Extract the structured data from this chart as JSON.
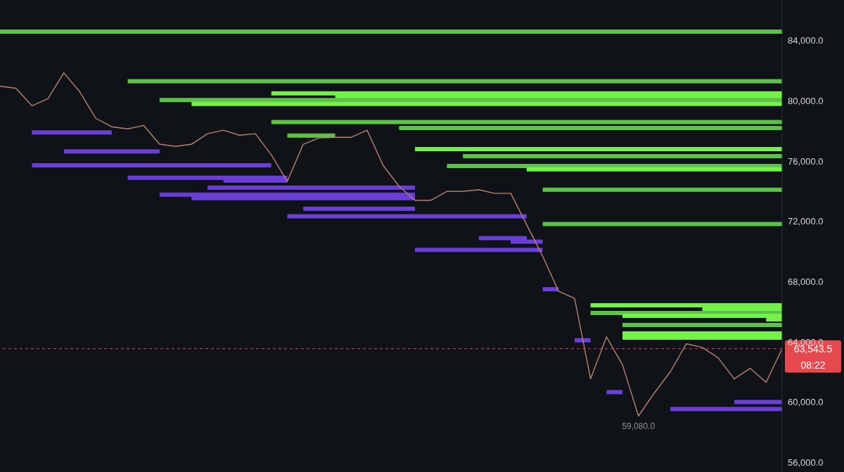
{
  "chart_data": {
    "type": "line",
    "ylim": [
      55400,
      86700
    ],
    "tick_labels": "y",
    "categories": [
      null,
      null,
      null,
      null,
      null,
      null,
      null,
      null,
      null,
      null,
      null,
      null,
      null,
      null,
      null,
      null,
      null,
      null,
      null,
      null,
      null,
      null,
      null,
      null,
      null,
      null,
      null,
      null,
      null,
      null,
      null,
      null,
      null,
      null,
      null,
      null,
      null,
      null,
      null,
      null,
      null,
      null,
      null,
      null,
      null,
      null,
      null,
      null,
      null,
      null
    ],
    "yticks": [
      {
        "value": 56000,
        "label": "56,000.0"
      },
      {
        "value": 60000,
        "label": "60,000.0"
      },
      {
        "value": 64000,
        "label": "64,000.0"
      },
      {
        "value": 68000,
        "label": "68,000.0"
      },
      {
        "value": 72000,
        "label": "72,000.0"
      },
      {
        "value": 76000,
        "label": "76,000.0"
      },
      {
        "value": 80000,
        "label": "80,000.0"
      },
      {
        "value": 84000,
        "label": "84,000.0"
      }
    ],
    "ref_lines": [
      {
        "axis": "y",
        "value": 63543.5,
        "label": "63,543.5",
        "color": "#e5484d",
        "line_style": "dashed"
      }
    ],
    "annotations": [
      "08:22",
      {
        "text": "59,080.0",
        "y": 59080
      }
    ],
    "series": [
      {
        "color": "#5cc24a",
        "values": [
          84600,
          84600,
          84600,
          84600,
          84600,
          84600,
          84600,
          84600,
          84600,
          84600,
          84600,
          84600,
          84600,
          84600,
          84600,
          84600,
          84600,
          84600,
          84600,
          84600,
          84600,
          84600,
          84600,
          84600,
          84600,
          84600,
          84600,
          84600,
          84600,
          84600,
          84600,
          84600,
          84600,
          84600,
          84600,
          84600,
          84600,
          84600,
          84600,
          84600,
          84600,
          84600,
          84600,
          84600,
          84600,
          84600,
          84600,
          84600,
          84600,
          84600
        ]
      },
      {
        "color": "#5cc24a",
        "values": [
          null,
          null,
          null,
          null,
          null,
          null,
          null,
          null,
          81300,
          81300,
          81300,
          81300,
          81300,
          81300,
          81300,
          81300,
          81300,
          81300,
          81300,
          81300,
          81300,
          81300,
          81300,
          81300,
          81300,
          81300,
          81300,
          81300,
          81300,
          81300,
          81300,
          81300,
          81300,
          81300,
          81300,
          81300,
          81300,
          81300,
          81300,
          81300,
          81300,
          81300,
          81300,
          81300,
          81300,
          81300,
          81300,
          81300,
          81300,
          81300
        ]
      },
      {
        "color": "#74f24a",
        "values": [
          null,
          null,
          null,
          null,
          null,
          null,
          null,
          null,
          null,
          null,
          null,
          null,
          null,
          null,
          null,
          null,
          null,
          80500,
          80500,
          80500,
          80500,
          80500,
          80500,
          80500,
          80500,
          80500,
          80500,
          80500,
          80500,
          80500,
          80500,
          80500,
          80500,
          80500,
          80500,
          80500,
          80500,
          80500,
          80500,
          80500,
          80500,
          80500,
          80500,
          80500,
          80500,
          80500,
          80500,
          80500,
          80500,
          80500
        ]
      },
      {
        "color": "#74f24a",
        "values": [
          null,
          null,
          null,
          null,
          null,
          null,
          null,
          null,
          null,
          null,
          null,
          null,
          null,
          null,
          null,
          null,
          null,
          null,
          null,
          null,
          null,
          80300,
          80300,
          80300,
          80300,
          80300,
          80300,
          80300,
          80300,
          80300,
          80300,
          80300,
          80300,
          80300,
          80300,
          80300,
          80300,
          80300,
          80300,
          80300,
          80300,
          80300,
          80300,
          80300,
          80300,
          80300,
          80300,
          80300,
          80300,
          80300
        ]
      },
      {
        "color": "#5cc24a",
        "values": [
          null,
          null,
          null,
          null,
          null,
          null,
          null,
          null,
          null,
          null,
          80050,
          80050,
          80050,
          80050,
          80050,
          80050,
          80050,
          80050,
          80050,
          80050,
          80050,
          80050,
          80050,
          80050,
          80050,
          80050,
          80050,
          80050,
          80050,
          80050,
          80050,
          80050,
          80050,
          80050,
          80050,
          80050,
          80050,
          80050,
          80050,
          80050,
          80050,
          80050,
          80050,
          80050,
          80050,
          80050,
          80050,
          80050,
          80050,
          80050
        ]
      },
      {
        "color": "#74f24a",
        "values": [
          null,
          null,
          null,
          null,
          null,
          null,
          null,
          null,
          null,
          null,
          null,
          null,
          79800,
          79800,
          79800,
          79800,
          79800,
          79800,
          79800,
          79800,
          79800,
          79800,
          79800,
          79800,
          79800,
          79800,
          79800,
          79800,
          79800,
          79800,
          79800,
          79800,
          79800,
          79800,
          79800,
          79800,
          79800,
          79800,
          79800,
          79800,
          79800,
          79800,
          79800,
          79800,
          79800,
          79800,
          79800,
          79800,
          79800,
          79800
        ]
      },
      {
        "color": "#5cc24a",
        "values": [
          null,
          null,
          null,
          null,
          null,
          null,
          null,
          null,
          null,
          null,
          null,
          null,
          null,
          null,
          null,
          null,
          null,
          78600,
          78600,
          78600,
          78600,
          78600,
          78600,
          78600,
          78600,
          78600,
          78600,
          78600,
          78600,
          78600,
          78600,
          78600,
          78600,
          78600,
          78600,
          78600,
          78600,
          78600,
          78600,
          78600,
          78600,
          78600,
          78600,
          78600,
          78600,
          78600,
          78600,
          78600,
          78600,
          78600
        ]
      },
      {
        "color": "#5cc24a",
        "values": [
          null,
          null,
          null,
          null,
          null,
          null,
          null,
          null,
          null,
          null,
          null,
          null,
          null,
          null,
          null,
          null,
          null,
          null,
          null,
          null,
          null,
          null,
          null,
          null,
          null,
          78200,
          78200,
          78200,
          78200,
          78200,
          78200,
          78200,
          78200,
          78200,
          78200,
          78200,
          78200,
          78200,
          78200,
          78200,
          78200,
          78200,
          78200,
          78200,
          78200,
          78200,
          78200,
          78200,
          78200,
          78200
        ]
      },
      {
        "color": "#5cc24a",
        "values": [
          null,
          null,
          null,
          null,
          null,
          null,
          null,
          null,
          null,
          null,
          null,
          null,
          null,
          null,
          null,
          null,
          null,
          null,
          77700,
          77700,
          77700,
          77700,
          null,
          null,
          null,
          null,
          null,
          null,
          null,
          null,
          null,
          null,
          null,
          null,
          null,
          null,
          null,
          null,
          null,
          null,
          null,
          null,
          null,
          null,
          null,
          null,
          null,
          null,
          null,
          null
        ]
      },
      {
        "color": "#74f24a",
        "values": [
          null,
          null,
          null,
          null,
          null,
          null,
          null,
          null,
          null,
          null,
          null,
          null,
          null,
          null,
          null,
          null,
          null,
          null,
          null,
          null,
          null,
          null,
          null,
          null,
          null,
          null,
          76800,
          76800,
          76800,
          76800,
          76800,
          76800,
          76800,
          76800,
          76800,
          76800,
          76800,
          76800,
          76800,
          76800,
          76800,
          76800,
          76800,
          76800,
          76800,
          76800,
          76800,
          76800,
          76800,
          76800
        ]
      },
      {
        "color": "#5cc24a",
        "values": [
          null,
          null,
          null,
          null,
          null,
          null,
          null,
          null,
          null,
          null,
          null,
          null,
          null,
          null,
          null,
          null,
          null,
          null,
          null,
          null,
          null,
          null,
          null,
          null,
          null,
          null,
          null,
          null,
          null,
          76330,
          76330,
          76330,
          76330,
          76330,
          76330,
          76330,
          76330,
          76330,
          76330,
          76330,
          76330,
          76330,
          76330,
          76330,
          76330,
          76330,
          76330,
          76330,
          76330,
          76330
        ]
      },
      {
        "color": "#5cc24a",
        "values": [
          null,
          null,
          null,
          null,
          null,
          null,
          null,
          null,
          null,
          null,
          null,
          null,
          null,
          null,
          null,
          null,
          null,
          null,
          null,
          null,
          null,
          null,
          null,
          null,
          null,
          null,
          null,
          null,
          75680,
          75680,
          75680,
          75680,
          75680,
          75680,
          75680,
          75680,
          75680,
          75680,
          75680,
          75680,
          75680,
          75680,
          75680,
          75680,
          75680,
          75680,
          75680,
          75680,
          75680,
          75680
        ]
      },
      {
        "color": "#74f24a",
        "values": [
          null,
          null,
          null,
          null,
          null,
          null,
          null,
          null,
          null,
          null,
          null,
          null,
          null,
          null,
          null,
          null,
          null,
          null,
          null,
          null,
          null,
          null,
          null,
          null,
          null,
          null,
          null,
          null,
          null,
          null,
          null,
          null,
          null,
          75450,
          75450,
          75450,
          75450,
          75450,
          75450,
          75450,
          75450,
          75450,
          75450,
          75450,
          75450,
          75450,
          75450,
          75450,
          75450,
          75450
        ]
      },
      {
        "color": "#5cc24a",
        "values": [
          null,
          null,
          null,
          null,
          null,
          null,
          null,
          null,
          null,
          null,
          null,
          null,
          null,
          null,
          null,
          null,
          null,
          null,
          null,
          null,
          null,
          null,
          null,
          null,
          null,
          null,
          null,
          null,
          null,
          null,
          null,
          null,
          null,
          null,
          74100,
          74100,
          74100,
          74100,
          74100,
          74100,
          74100,
          74100,
          74100,
          74100,
          74100,
          74100,
          74100,
          74100,
          74100,
          74100
        ]
      },
      {
        "color": "#5cc24a",
        "values": [
          null,
          null,
          null,
          null,
          null,
          null,
          null,
          null,
          null,
          null,
          null,
          null,
          null,
          null,
          null,
          null,
          null,
          null,
          null,
          null,
          null,
          null,
          null,
          null,
          null,
          null,
          null,
          null,
          null,
          null,
          null,
          null,
          null,
          null,
          71820,
          71820,
          71820,
          71820,
          71820,
          71820,
          71820,
          71820,
          71820,
          71820,
          71820,
          71820,
          71820,
          71820,
          71820,
          71820
        ]
      },
      {
        "color": "#74f24a",
        "values": [
          null,
          null,
          null,
          null,
          null,
          null,
          null,
          null,
          null,
          null,
          null,
          null,
          null,
          null,
          null,
          null,
          null,
          null,
          null,
          null,
          null,
          null,
          null,
          null,
          null,
          null,
          null,
          null,
          null,
          null,
          null,
          null,
          null,
          null,
          null,
          null,
          null,
          66420,
          66420,
          66420,
          66420,
          66420,
          66420,
          66420,
          66420,
          66420,
          66420,
          66420,
          66420,
          66420
        ]
      },
      {
        "color": "#74f24a",
        "values": [
          null,
          null,
          null,
          null,
          null,
          null,
          null,
          null,
          null,
          null,
          null,
          null,
          null,
          null,
          null,
          null,
          null,
          null,
          null,
          null,
          null,
          null,
          null,
          null,
          null,
          null,
          null,
          null,
          null,
          null,
          null,
          null,
          null,
          null,
          null,
          null,
          null,
          null,
          null,
          null,
          null,
          null,
          null,
          null,
          66140,
          66140,
          66140,
          66140,
          66140,
          66140
        ]
      },
      {
        "color": "#5cc24a",
        "values": [
          null,
          null,
          null,
          null,
          null,
          null,
          null,
          null,
          null,
          null,
          null,
          null,
          null,
          null,
          null,
          null,
          null,
          null,
          null,
          null,
          null,
          null,
          null,
          null,
          null,
          null,
          null,
          null,
          null,
          null,
          null,
          null,
          null,
          null,
          null,
          null,
          null,
          65910,
          65910,
          65910,
          65910,
          65910,
          65910,
          65910,
          65910,
          65910,
          65910,
          65910,
          65910,
          65910
        ]
      },
      {
        "color": "#74f24a",
        "values": [
          null,
          null,
          null,
          null,
          null,
          null,
          null,
          null,
          null,
          null,
          null,
          null,
          null,
          null,
          null,
          null,
          null,
          null,
          null,
          null,
          null,
          null,
          null,
          null,
          null,
          null,
          null,
          null,
          null,
          null,
          null,
          null,
          null,
          null,
          null,
          null,
          null,
          null,
          null,
          65730,
          65730,
          65730,
          65730,
          65730,
          65730,
          65730,
          65730,
          65730,
          65730,
          65730
        ]
      },
      {
        "color": "#74f24a",
        "values": [
          null,
          null,
          null,
          null,
          null,
          null,
          null,
          null,
          null,
          null,
          null,
          null,
          null,
          null,
          null,
          null,
          null,
          null,
          null,
          null,
          null,
          null,
          null,
          null,
          null,
          null,
          null,
          null,
          null,
          null,
          null,
          null,
          null,
          null,
          null,
          null,
          null,
          null,
          null,
          null,
          null,
          null,
          null,
          null,
          null,
          null,
          null,
          null,
          65490,
          65490
        ]
      },
      {
        "color": "#5cc24a",
        "values": [
          null,
          null,
          null,
          null,
          null,
          null,
          null,
          null,
          null,
          null,
          null,
          null,
          null,
          null,
          null,
          null,
          null,
          null,
          null,
          null,
          null,
          null,
          null,
          null,
          null,
          null,
          null,
          null,
          null,
          null,
          null,
          null,
          null,
          null,
          null,
          null,
          null,
          null,
          null,
          65120,
          65120,
          65120,
          65120,
          65120,
          65120,
          65120,
          65120,
          65120,
          65120,
          65120
        ]
      },
      {
        "color": "#74f24a",
        "values": [
          null,
          null,
          null,
          null,
          null,
          null,
          null,
          null,
          null,
          null,
          null,
          null,
          null,
          null,
          null,
          null,
          null,
          null,
          null,
          null,
          null,
          null,
          null,
          null,
          null,
          null,
          null,
          null,
          null,
          null,
          null,
          null,
          null,
          null,
          null,
          null,
          null,
          null,
          null,
          64560,
          64560,
          64560,
          64560,
          64560,
          64560,
          64560,
          64560,
          64560,
          64560,
          64560
        ]
      },
      {
        "color": "#74f24a",
        "values": [
          null,
          null,
          null,
          null,
          null,
          null,
          null,
          null,
          null,
          null,
          null,
          null,
          null,
          null,
          null,
          null,
          null,
          null,
          null,
          null,
          null,
          null,
          null,
          null,
          null,
          null,
          null,
          null,
          null,
          null,
          null,
          null,
          null,
          null,
          null,
          null,
          null,
          null,
          null,
          64280,
          64280,
          64280,
          64280,
          64280,
          64280,
          64280,
          64280,
          64280,
          64280,
          64280
        ]
      },
      {
        "color": "#6a3fd8",
        "values": [
          null,
          null,
          77900,
          77900,
          77900,
          77900,
          77900,
          77900,
          null,
          null,
          null,
          null,
          null,
          null,
          null,
          null,
          null,
          null,
          null,
          null,
          null,
          null,
          null,
          null,
          null,
          null,
          null,
          null,
          null,
          null,
          null,
          null,
          null,
          null,
          null,
          null,
          null,
          null,
          null,
          null,
          null,
          null,
          null,
          null,
          null,
          null,
          null,
          null,
          null,
          null
        ]
      },
      {
        "color": "#6a3fd8",
        "values": [
          null,
          null,
          null,
          null,
          76650,
          76650,
          76650,
          76650,
          76650,
          76650,
          76650,
          null,
          null,
          null,
          null,
          null,
          null,
          null,
          null,
          null,
          null,
          null,
          null,
          null,
          null,
          null,
          null,
          null,
          null,
          null,
          null,
          null,
          null,
          null,
          null,
          null,
          null,
          null,
          null,
          null,
          null,
          null,
          null,
          null,
          null,
          null,
          null,
          null,
          null,
          null
        ]
      },
      {
        "color": "#6a3fd8",
        "values": [
          null,
          null,
          75720,
          75720,
          75720,
          75720,
          75720,
          75720,
          75720,
          75720,
          75720,
          75720,
          75720,
          75720,
          75720,
          75720,
          75720,
          75720,
          null,
          null,
          null,
          null,
          null,
          null,
          null,
          null,
          null,
          null,
          null,
          null,
          null,
          null,
          null,
          null,
          null,
          null,
          null,
          null,
          null,
          null,
          null,
          null,
          null,
          null,
          null,
          null,
          null,
          null,
          null,
          null
        ]
      },
      {
        "color": "#6a3fd8",
        "values": [
          null,
          null,
          null,
          null,
          null,
          null,
          null,
          null,
          74890,
          74890,
          74890,
          74890,
          74890,
          74890,
          74890,
          74890,
          74890,
          74890,
          74890,
          null,
          null,
          null,
          null,
          null,
          null,
          null,
          null,
          null,
          null,
          null,
          null,
          null,
          null,
          null,
          null,
          null,
          null,
          null,
          null,
          null,
          null,
          null,
          null,
          null,
          null,
          null,
          null,
          null,
          null,
          null
        ]
      },
      {
        "color": "#6a3fd8",
        "values": [
          null,
          null,
          null,
          null,
          null,
          null,
          null,
          null,
          null,
          null,
          null,
          null,
          null,
          null,
          74700,
          74700,
          74700,
          74700,
          74700,
          null,
          null,
          null,
          null,
          null,
          null,
          null,
          null,
          null,
          null,
          null,
          null,
          null,
          null,
          null,
          null,
          null,
          null,
          null,
          null,
          null,
          null,
          null,
          null,
          null,
          null,
          null,
          null,
          null,
          null,
          null
        ]
      },
      {
        "color": "#6a3fd8",
        "values": [
          null,
          null,
          null,
          null,
          null,
          null,
          null,
          null,
          null,
          null,
          null,
          null,
          null,
          74240,
          74240,
          74240,
          74240,
          74240,
          74240,
          74240,
          74240,
          74240,
          74240,
          74240,
          74240,
          74240,
          74240,
          null,
          null,
          null,
          null,
          null,
          null,
          null,
          null,
          null,
          null,
          null,
          null,
          null,
          null,
          null,
          null,
          null,
          null,
          null,
          null,
          null,
          null,
          null
        ]
      },
      {
        "color": "#6a3fd8",
        "values": [
          null,
          null,
          null,
          null,
          null,
          null,
          null,
          null,
          null,
          null,
          73770,
          73770,
          73770,
          73770,
          73770,
          73770,
          73770,
          73770,
          73770,
          73770,
          73770,
          73770,
          73770,
          73770,
          73770,
          73770,
          73770,
          null,
          null,
          null,
          null,
          null,
          null,
          null,
          null,
          null,
          null,
          null,
          null,
          null,
          null,
          null,
          null,
          null,
          null,
          null,
          null,
          null,
          null,
          null
        ]
      },
      {
        "color": "#6a3fd8",
        "values": [
          null,
          null,
          null,
          null,
          null,
          null,
          null,
          null,
          null,
          null,
          null,
          null,
          73540,
          73540,
          73540,
          73540,
          73540,
          73540,
          73540,
          73540,
          73540,
          73540,
          73540,
          73540,
          73540,
          73540,
          73540,
          null,
          null,
          null,
          null,
          null,
          null,
          null,
          null,
          null,
          null,
          null,
          null,
          null,
          null,
          null,
          null,
          null,
          null,
          null,
          null,
          null,
          null,
          null
        ]
      },
      {
        "color": "#6a3fd8",
        "values": [
          null,
          null,
          null,
          null,
          null,
          null,
          null,
          null,
          null,
          null,
          null,
          null,
          null,
          null,
          null,
          null,
          null,
          null,
          null,
          72840,
          72840,
          72840,
          72840,
          72840,
          72840,
          72840,
          72840,
          null,
          null,
          null,
          null,
          null,
          null,
          null,
          null,
          null,
          null,
          null,
          null,
          null,
          null,
          null,
          null,
          null,
          null,
          null,
          null,
          null,
          null,
          null
        ]
      },
      {
        "color": "#6a3fd8",
        "values": [
          null,
          null,
          null,
          null,
          null,
          null,
          null,
          null,
          null,
          null,
          null,
          null,
          null,
          null,
          null,
          null,
          null,
          null,
          72330,
          72330,
          72330,
          72330,
          72330,
          72330,
          72330,
          72330,
          72330,
          72330,
          72330,
          72330,
          72330,
          72330,
          72330,
          72330,
          null,
          null,
          null,
          null,
          null,
          null,
          null,
          null,
          null,
          null,
          null,
          null,
          null,
          null,
          null,
          null
        ]
      },
      {
        "color": "#6a3fd8",
        "values": [
          null,
          null,
          null,
          null,
          null,
          null,
          null,
          null,
          null,
          null,
          null,
          null,
          null,
          null,
          null,
          null,
          null,
          null,
          null,
          null,
          null,
          null,
          null,
          null,
          null,
          null,
          null,
          null,
          null,
          null,
          70890,
          70890,
          70890,
          70890,
          null,
          null,
          null,
          null,
          null,
          null,
          null,
          null,
          null,
          null,
          null,
          null,
          null,
          null,
          null,
          null
        ]
      },
      {
        "color": "#6a3fd8",
        "values": [
          null,
          null,
          null,
          null,
          null,
          null,
          null,
          null,
          null,
          null,
          null,
          null,
          null,
          null,
          null,
          null,
          null,
          null,
          null,
          null,
          null,
          null,
          null,
          null,
          null,
          null,
          null,
          null,
          null,
          null,
          null,
          null,
          70650,
          70650,
          70650,
          null,
          null,
          null,
          null,
          null,
          null,
          null,
          null,
          null,
          null,
          null,
          null,
          null,
          null,
          null
        ]
      },
      {
        "color": "#6a3fd8",
        "values": [
          null,
          null,
          null,
          null,
          null,
          null,
          null,
          null,
          null,
          null,
          null,
          null,
          null,
          null,
          null,
          null,
          null,
          null,
          null,
          null,
          null,
          null,
          null,
          null,
          null,
          null,
          70100,
          70100,
          70100,
          70100,
          70100,
          70100,
          70100,
          70100,
          70100,
          null,
          null,
          null,
          null,
          null,
          null,
          null,
          null,
          null,
          null,
          null,
          null,
          null,
          null,
          null
        ]
      },
      {
        "color": "#6a3fd8",
        "values": [
          null,
          null,
          null,
          null,
          null,
          null,
          null,
          null,
          null,
          null,
          null,
          null,
          null,
          null,
          null,
          null,
          null,
          null,
          null,
          null,
          null,
          null,
          null,
          null,
          null,
          null,
          null,
          null,
          null,
          null,
          null,
          null,
          null,
          null,
          67490,
          67490,
          null,
          null,
          null,
          null,
          null,
          null,
          null,
          null,
          null,
          null,
          null,
          null,
          null,
          null
        ]
      },
      {
        "color": "#6a3fd8",
        "values": [
          null,
          null,
          null,
          null,
          null,
          null,
          null,
          null,
          null,
          null,
          null,
          null,
          null,
          null,
          null,
          null,
          null,
          null,
          null,
          null,
          null,
          null,
          null,
          null,
          null,
          null,
          null,
          null,
          null,
          null,
          null,
          null,
          null,
          null,
          null,
          null,
          64100,
          64100,
          null,
          null,
          null,
          null,
          null,
          null,
          null,
          null,
          null,
          null,
          null,
          null
        ]
      },
      {
        "color": "#6a3fd8",
        "values": [
          null,
          null,
          null,
          null,
          null,
          null,
          null,
          null,
          null,
          null,
          null,
          null,
          null,
          null,
          null,
          null,
          null,
          null,
          null,
          null,
          null,
          null,
          null,
          null,
          null,
          null,
          null,
          null,
          null,
          null,
          null,
          null,
          null,
          null,
          null,
          null,
          null,
          null,
          60660,
          60660,
          null,
          null,
          null,
          null,
          null,
          null,
          null,
          null,
          null,
          null
        ]
      },
      {
        "color": "#6a3fd8",
        "values": [
          null,
          null,
          null,
          null,
          null,
          null,
          null,
          null,
          null,
          null,
          null,
          null,
          null,
          null,
          null,
          null,
          null,
          null,
          null,
          null,
          null,
          null,
          null,
          null,
          null,
          null,
          null,
          null,
          null,
          null,
          null,
          null,
          null,
          null,
          null,
          null,
          null,
          null,
          null,
          null,
          null,
          null,
          null,
          null,
          null,
          null,
          60000,
          60000,
          60000,
          60000
        ]
      },
      {
        "color": "#6a3fd8",
        "values": [
          null,
          null,
          null,
          null,
          null,
          null,
          null,
          null,
          null,
          null,
          null,
          null,
          null,
          null,
          null,
          null,
          null,
          null,
          null,
          null,
          null,
          null,
          null,
          null,
          null,
          null,
          null,
          null,
          null,
          null,
          null,
          null,
          null,
          null,
          null,
          null,
          null,
          null,
          null,
          null,
          null,
          null,
          59540,
          59540,
          59540,
          59540,
          59540,
          59540,
          59540,
          59540
        ]
      },
      {
        "color": "#b98274",
        "values": [
          80980,
          80840,
          79680,
          80140,
          81860,
          80600,
          78840,
          78280,
          78140,
          78370,
          77120,
          76980,
          77120,
          77820,
          78050,
          77720,
          77820,
          76420,
          74650,
          77120,
          77540,
          77580,
          77580,
          78050,
          75720,
          74330,
          73400,
          73400,
          73990,
          73990,
          74100,
          73860,
          73860,
          71770,
          69680,
          67350,
          66890,
          61540,
          64330,
          62470,
          59080,
          60610,
          62010,
          63870,
          63630,
          62930,
          61540,
          62240,
          61310,
          63543.5
        ]
      }
    ]
  }
}
